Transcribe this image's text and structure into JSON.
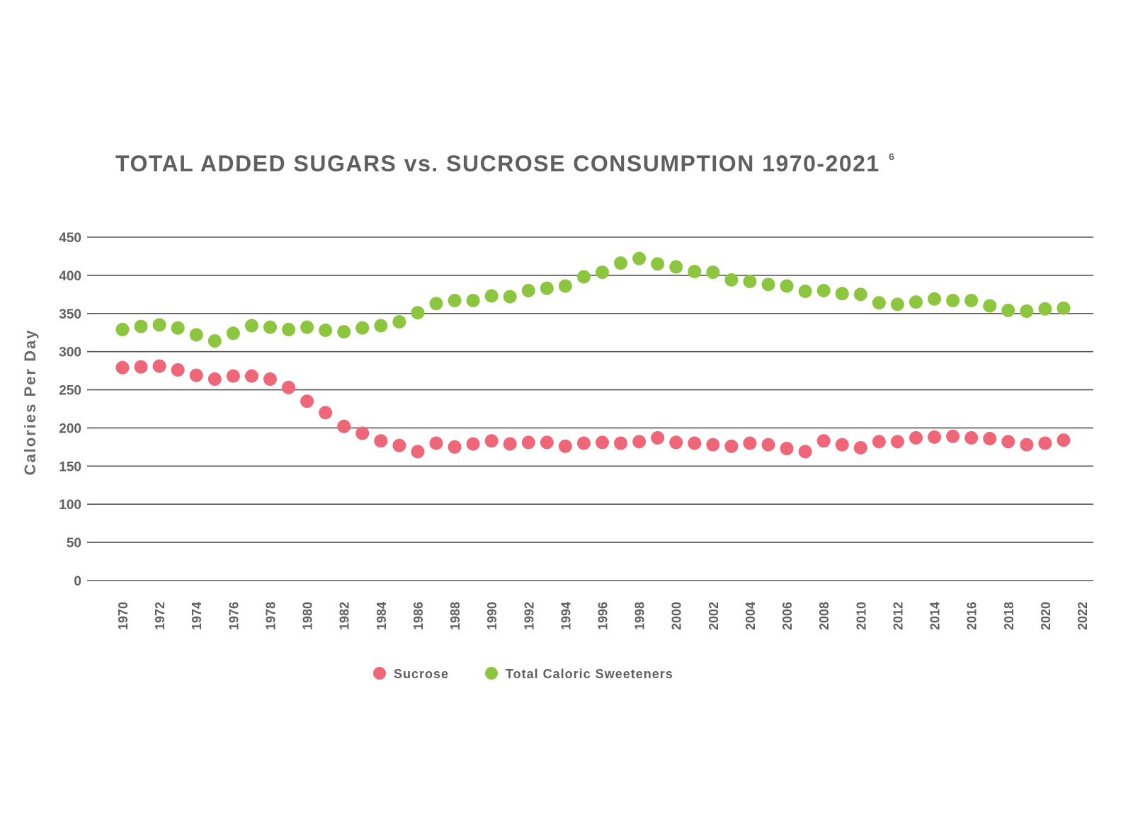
{
  "chart_data": {
    "type": "scatter",
    "title": "TOTAL ADDED SUGARS vs. SUCROSE CONSUMPTION 1970-2021",
    "title_superscript": "6",
    "xlabel": "",
    "ylabel": "Calories Per Day",
    "ylim": [
      0,
      450
    ],
    "yticks": [
      "0",
      "50",
      "100",
      "150",
      "200",
      "250",
      "300",
      "350",
      "400",
      "450"
    ],
    "xlim": [
      1970,
      2022
    ],
    "xticks": [
      "1970",
      "1972",
      "1974",
      "1976",
      "1978",
      "1980",
      "1982",
      "1984",
      "1986",
      "1988",
      "1990",
      "1992",
      "1994",
      "1996",
      "1998",
      "2000",
      "2002",
      "2004",
      "2006",
      "2008",
      "2010",
      "2012",
      "2014",
      "2016",
      "2018",
      "2020",
      "2022"
    ],
    "grid": true,
    "legend_position": "bottom-center",
    "x": [
      1970,
      1971,
      1972,
      1973,
      1974,
      1975,
      1976,
      1977,
      1978,
      1979,
      1980,
      1981,
      1982,
      1983,
      1984,
      1985,
      1986,
      1987,
      1988,
      1989,
      1990,
      1991,
      1992,
      1993,
      1994,
      1995,
      1996,
      1997,
      1998,
      1999,
      2000,
      2001,
      2002,
      2003,
      2004,
      2005,
      2006,
      2007,
      2008,
      2009,
      2010,
      2011,
      2012,
      2013,
      2014,
      2015,
      2016,
      2017,
      2018,
      2019,
      2020,
      2021
    ],
    "series": [
      {
        "name": "Sucrose",
        "color": "#ee6677",
        "values": [
          279,
          280,
          281,
          276,
          269,
          264,
          268,
          268,
          264,
          253,
          235,
          220,
          202,
          193,
          183,
          177,
          169,
          180,
          175,
          179,
          183,
          179,
          181,
          181,
          176,
          180,
          181,
          180,
          182,
          187,
          181,
          180,
          178,
          176,
          180,
          178,
          173,
          169,
          183,
          178,
          174,
          182,
          182,
          187,
          188,
          189,
          187,
          186,
          182,
          178,
          180,
          184
        ]
      },
      {
        "name": "Total Caloric Sweeteners",
        "color": "#8cc63f",
        "values": [
          329,
          333,
          335,
          331,
          322,
          314,
          324,
          334,
          332,
          329,
          332,
          328,
          326,
          331,
          334,
          339,
          351,
          363,
          367,
          367,
          373,
          372,
          380,
          383,
          386,
          398,
          404,
          416,
          422,
          415,
          411,
          405,
          404,
          394,
          392,
          388,
          386,
          379,
          380,
          376,
          375,
          364,
          362,
          365,
          369,
          367,
          367,
          360,
          354,
          353,
          356,
          357
        ]
      }
    ]
  }
}
